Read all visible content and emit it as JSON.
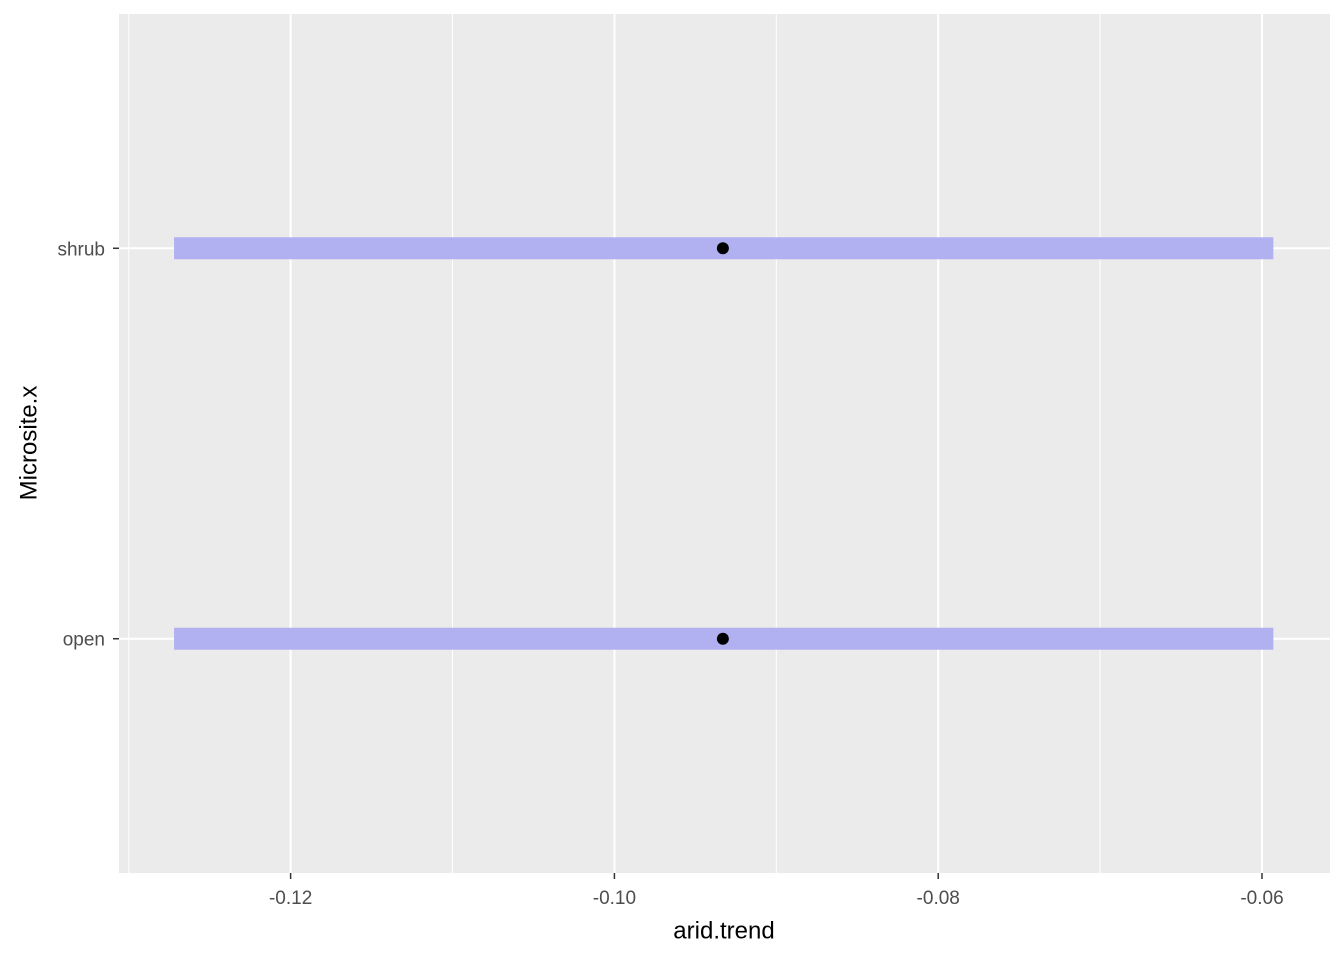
{
  "chart_data": {
    "type": "pointrange",
    "x_label": "arid.trend",
    "y_label": "Microsite.x",
    "categories": [
      "open",
      "shrub"
    ],
    "values": [
      -0.0933,
      -0.0933
    ],
    "lower": [
      -0.1272,
      -0.1272
    ],
    "upper": [
      -0.0593,
      -0.0593
    ],
    "interval_color": "#b1b1f1",
    "point_color": "#000000",
    "xlim": [
      -0.1306,
      -0.0558
    ],
    "xticks": [
      -0.12,
      {
        "value": -0.1,
        "label": "-0.10"
      },
      -0.08,
      -0.06
    ],
    "xminor_ticks": [
      -0.13,
      -0.11,
      -0.09,
      -0.07
    ],
    "grid": true
  }
}
